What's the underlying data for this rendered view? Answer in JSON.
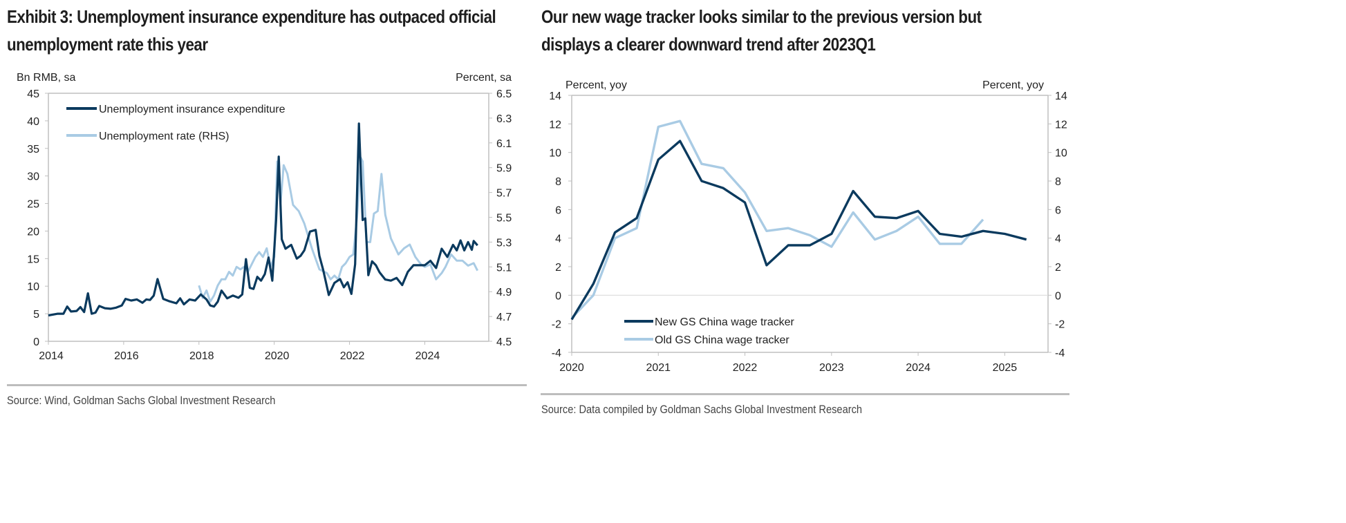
{
  "left": {
    "title_line1": "Exhibit 3: Unemployment insurance expenditure has outpaced official",
    "title_line2": "unemployment rate this year",
    "source": "Source: Wind, Goldman Sachs Global Investment Research"
  },
  "right": {
    "title_line1": "Our new wage tracker looks similar to the previous version but",
    "title_line2": "displays a clearer downward trend after 2023Q1",
    "source": "Source: Data compiled by Goldman Sachs Global Investment Research"
  },
  "colors": {
    "dark": "#0b3a5e",
    "light": "#a9cbe4",
    "axis": "#bfbfbf",
    "text": "#222222"
  },
  "chart_data": [
    {
      "id": "left",
      "type": "line",
      "title": "Exhibit 3: Unemployment insurance expenditure has outpaced official unemployment rate this year",
      "ylabel_left": "Bn RMB, sa",
      "ylabel_right": "Percent, sa",
      "ylim_left": [
        0,
        45
      ],
      "ylim_right": [
        4.5,
        6.5
      ],
      "yticks_left": [
        "0",
        "5",
        "10",
        "15",
        "20",
        "25",
        "30",
        "35",
        "40",
        "45"
      ],
      "yticks_right": [
        "4.5",
        "4.7",
        "4.9",
        "5.1",
        "5.3",
        "5.5",
        "5.7",
        "5.9",
        "6.1",
        "6.3",
        "6.5"
      ],
      "xlim": [
        2014.0,
        2025.7
      ],
      "xticks": [
        "2014",
        "2016",
        "2018",
        "2020",
        "2022",
        "2024"
      ],
      "legend": "top-left",
      "grid": false,
      "series": [
        {
          "name": "Unemployment insurance expenditure",
          "axis": "left",
          "color": "#0b3a5e",
          "x": [
            2014.0,
            2014.25,
            2014.4,
            2014.5,
            2014.6,
            2014.75,
            2014.85,
            2014.95,
            2015.05,
            2015.15,
            2015.25,
            2015.35,
            2015.5,
            2015.65,
            2015.8,
            2015.95,
            2016.05,
            2016.2,
            2016.35,
            2016.5,
            2016.6,
            2016.7,
            2016.8,
            2016.9,
            2017.05,
            2017.2,
            2017.4,
            2017.5,
            2017.6,
            2017.75,
            2017.9,
            2018.05,
            2018.2,
            2018.3,
            2018.4,
            2018.5,
            2018.6,
            2018.75,
            2018.9,
            2019.05,
            2019.15,
            2019.25,
            2019.35,
            2019.45,
            2019.55,
            2019.65,
            2019.75,
            2019.85,
            2019.95,
            2020.05,
            2020.12,
            2020.2,
            2020.3,
            2020.45,
            2020.6,
            2020.7,
            2020.8,
            2020.95,
            2021.1,
            2021.2,
            2021.3,
            2021.45,
            2021.6,
            2021.75,
            2021.85,
            2021.95,
            2022.05,
            2022.15,
            2022.25,
            2022.35,
            2022.42,
            2022.5,
            2022.6,
            2022.7,
            2022.8,
            2022.95,
            2023.1,
            2023.25,
            2023.4,
            2023.55,
            2023.7,
            2023.85,
            2024.0,
            2024.15,
            2024.3,
            2024.45,
            2024.6,
            2024.75,
            2024.85,
            2024.95,
            2025.05,
            2025.15,
            2025.25,
            2025.3,
            2025.4
          ],
          "y": [
            4.7,
            5.0,
            5.0,
            6.3,
            5.4,
            5.5,
            6.2,
            5.3,
            8.7,
            5.0,
            5.2,
            6.4,
            6.0,
            5.9,
            6.1,
            6.5,
            7.7,
            7.4,
            7.6,
            7.0,
            7.6,
            7.5,
            8.3,
            11.3,
            7.7,
            7.3,
            6.9,
            7.8,
            6.7,
            7.6,
            7.4,
            8.5,
            7.6,
            6.5,
            6.3,
            7.2,
            9.2,
            7.8,
            8.3,
            7.9,
            8.5,
            14.9,
            9.7,
            9.5,
            11.7,
            11.0,
            12.2,
            15.2,
            11.0,
            22.0,
            33.5,
            18.5,
            16.8,
            17.5,
            15.0,
            15.5,
            16.5,
            19.9,
            20.2,
            15.5,
            13.0,
            8.4,
            10.6,
            11.3,
            9.8,
            10.7,
            8.6,
            14.0,
            39.5,
            22.0,
            22.3,
            12.0,
            14.5,
            13.8,
            12.5,
            11.2,
            11.0,
            11.5,
            10.2,
            12.6,
            13.8,
            13.8,
            13.8,
            14.6,
            13.3,
            16.8,
            15.3,
            17.5,
            16.5,
            18.3,
            16.5,
            18.0,
            16.6,
            18.2,
            17.4
          ]
        },
        {
          "name": "Unemployment rate (RHS)",
          "axis": "right",
          "color": "#a9cbe4",
          "x": [
            2018.0,
            2018.1,
            2018.2,
            2018.3,
            2018.4,
            2018.5,
            2018.6,
            2018.7,
            2018.8,
            2018.9,
            2019.0,
            2019.1,
            2019.2,
            2019.3,
            2019.4,
            2019.5,
            2019.6,
            2019.7,
            2019.8,
            2019.9,
            2020.0,
            2020.08,
            2020.17,
            2020.25,
            2020.35,
            2020.5,
            2020.65,
            2020.8,
            2021.0,
            2021.2,
            2021.4,
            2021.5,
            2021.6,
            2021.7,
            2021.8,
            2021.9,
            2022.0,
            2022.1,
            2022.2,
            2022.3,
            2022.35,
            2022.45,
            2022.55,
            2022.65,
            2022.75,
            2022.85,
            2022.95,
            2023.1,
            2023.3,
            2023.45,
            2023.6,
            2023.75,
            2023.9,
            2024.0,
            2024.15,
            2024.3,
            2024.45,
            2024.55,
            2024.7,
            2024.85,
            2025.0,
            2025.15,
            2025.3,
            2025.4
          ],
          "y": [
            4.95,
            4.85,
            4.91,
            4.82,
            4.87,
            4.95,
            5.0,
            5.0,
            5.06,
            5.03,
            5.1,
            5.08,
            5.1,
            5.06,
            5.12,
            5.18,
            5.22,
            5.18,
            5.25,
            5.1,
            5.18,
            5.95,
            5.62,
            5.92,
            5.85,
            5.6,
            5.55,
            5.45,
            5.25,
            5.08,
            5.05,
            5.0,
            5.03,
            5.0,
            5.1,
            5.13,
            5.18,
            5.2,
            5.5,
            5.98,
            5.95,
            5.3,
            5.3,
            5.53,
            5.55,
            5.85,
            5.52,
            5.33,
            5.2,
            5.25,
            5.28,
            5.18,
            5.12,
            5.1,
            5.12,
            5.0,
            5.05,
            5.1,
            5.2,
            5.15,
            5.15,
            5.11,
            5.13,
            5.07
          ]
        }
      ]
    },
    {
      "id": "right",
      "type": "line",
      "title": "Our new wage tracker looks similar to the previous version but displays a clearer downward trend after 2023Q1",
      "ylabel_left": "Percent, yoy",
      "ylabel_right": "Percent, yoy",
      "ylim": [
        -4,
        14
      ],
      "yticks": [
        "-4",
        "-2",
        "0",
        "2",
        "4",
        "6",
        "8",
        "10",
        "12",
        "14"
      ],
      "xlim": [
        2020.0,
        2025.5
      ],
      "xticks": [
        "2020",
        "2021",
        "2022",
        "2023",
        "2024",
        "2025"
      ],
      "legend": "bottom-left",
      "grid": false,
      "series": [
        {
          "name": "New GS China wage tracker",
          "color": "#0b3a5e",
          "x": [
            2020.0,
            2020.25,
            2020.5,
            2020.75,
            2021.0,
            2021.25,
            2021.5,
            2021.75,
            2022.0,
            2022.25,
            2022.5,
            2022.75,
            2023.0,
            2023.25,
            2023.5,
            2023.75,
            2024.0,
            2024.25,
            2024.5,
            2024.75,
            2025.0,
            2025.25
          ],
          "y": [
            -1.7,
            0.8,
            4.4,
            5.4,
            9.5,
            10.8,
            8.0,
            7.5,
            6.5,
            2.1,
            3.5,
            3.5,
            4.3,
            7.3,
            5.5,
            5.4,
            5.9,
            4.3,
            4.1,
            4.5,
            4.3,
            3.9
          ]
        },
        {
          "name": "Old GS China wage tracker",
          "color": "#a9cbe4",
          "x": [
            2020.0,
            2020.25,
            2020.5,
            2020.75,
            2021.0,
            2021.25,
            2021.5,
            2021.75,
            2022.0,
            2022.25,
            2022.5,
            2022.75,
            2023.0,
            2023.25,
            2023.5,
            2023.75,
            2024.0,
            2024.25,
            2024.5,
            2024.75
          ],
          "y": [
            -1.6,
            0.0,
            4.0,
            4.7,
            11.8,
            12.2,
            9.2,
            8.9,
            7.2,
            4.5,
            4.7,
            4.2,
            3.4,
            5.8,
            3.9,
            4.5,
            5.5,
            3.6,
            3.6,
            5.3
          ]
        }
      ]
    }
  ]
}
